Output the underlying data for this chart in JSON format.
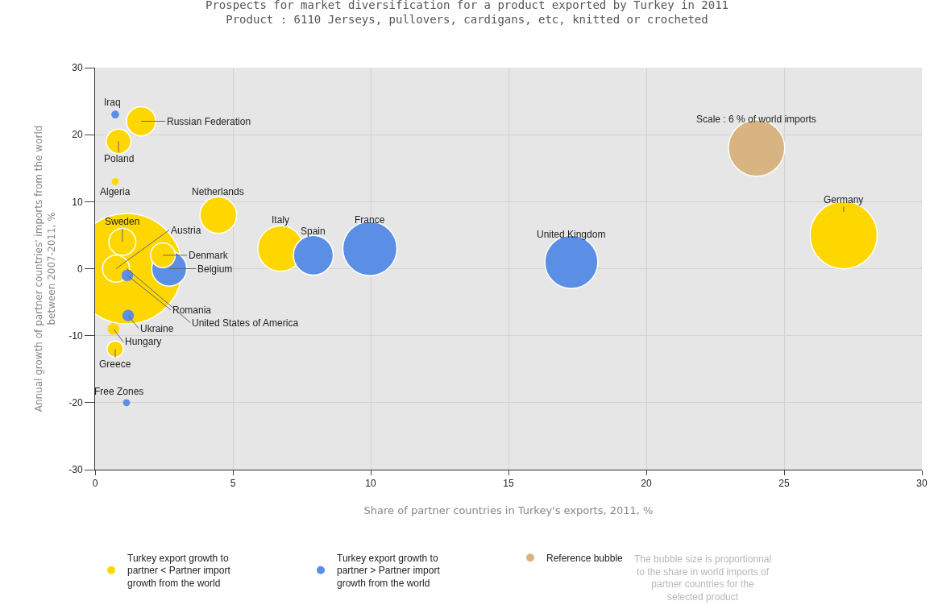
{
  "chart_data": {
    "type": "bubble",
    "title": "Prospects for market diversification for a product exported by Turkey in 2011",
    "subtitle": "Product : 6110 Jerseys, pullovers, cardigans, etc, knitted or crocheted",
    "xlabel": "Share of partner countries in Turkey's exports, 2011, %",
    "ylabel": "Annual growth of partner countries' imports from the world between 2007-2011, %",
    "series": [
      {
        "name": "Turkey export growth to partner < Partner import growth from the world",
        "color": "#ffd700",
        "x": [
          0.85,
          1.67,
          0.73,
          4.47,
          0.99,
          0.76,
          2.46,
          6.73,
          27.16,
          1.15,
          0.67,
          0.73
        ],
        "values": [
          19,
          22,
          13,
          8,
          4,
          0,
          2,
          3,
          5,
          0,
          -9,
          -12
        ],
        "sizes": [
          0.05,
          0.07,
          0.004,
          0.11,
          0.06,
          0.06,
          0.05,
          0.17,
          0.37,
          1,
          0.011,
          0.022
        ]
      },
      {
        "name": "Turkey export growth to partner > Partner import growth from the world",
        "color": "#5b8fe6",
        "x": [
          0.73,
          2.69,
          7.92,
          9.97,
          17.28,
          1.17,
          1.2,
          1.14
        ],
        "values": [
          23,
          0,
          2,
          3,
          1,
          -1,
          -7,
          -20
        ],
        "sizes": [
          0.005,
          0.1,
          0.13,
          0.24,
          0.23,
          0.011,
          0.011,
          0.004
        ]
      },
      {
        "name": "Reference bubble",
        "color": "#d9b483",
        "x": [
          24.0
        ],
        "values": [
          18
        ],
        "sizes": [
          0.26
        ]
      }
    ],
    "xlim": [
      0,
      30
    ],
    "xticks": [
      0,
      5,
      10,
      15,
      20,
      25,
      30
    ],
    "ylim": [
      -30,
      30
    ],
    "yticks": [
      -30,
      -20,
      -10,
      0,
      10,
      20,
      30
    ],
    "grid": true,
    "legend": "bottom",
    "annotations": [
      {
        "text": "Iraq",
        "x": 0.73,
        "y": 23
      },
      {
        "text": "Russian Federation",
        "x": 1.67,
        "y": 22
      },
      {
        "text": "Poland",
        "x": 0.85,
        "y": 19
      },
      {
        "text": "Algeria",
        "x": 0.73,
        "y": 13
      },
      {
        "text": "Netherlands",
        "x": 4.47,
        "y": 8
      },
      {
        "text": "Sweden",
        "x": 0.99,
        "y": 4
      },
      {
        "text": "Austria",
        "x": 0.76,
        "y": 0
      },
      {
        "text": "Denmark",
        "x": 2.46,
        "y": 2
      },
      {
        "text": "Belgium",
        "x": 2.69,
        "y": 0
      },
      {
        "text": "Italy",
        "x": 6.73,
        "y": 3
      },
      {
        "text": "Spain",
        "x": 7.92,
        "y": 2
      },
      {
        "text": "France",
        "x": 9.97,
        "y": 3
      },
      {
        "text": "United Kingdom",
        "x": 17.28,
        "y": 1
      },
      {
        "text": "Germany",
        "x": 27.16,
        "y": 5
      },
      {
        "text": "Romania",
        "x": 1.17,
        "y": -1
      },
      {
        "text": "United States of America",
        "x": 1.15,
        "y": 0
      },
      {
        "text": "Ukraine",
        "x": 1.2,
        "y": -7
      },
      {
        "text": "Hungary",
        "x": 0.67,
        "y": -9
      },
      {
        "text": "Greece",
        "x": 0.73,
        "y": -12
      },
      {
        "text": "Free Zones",
        "x": 1.14,
        "y": -20
      },
      {
        "text": "Scale : 6 % of world imports",
        "x": 24.0,
        "y": 18
      },
      "The bubble size is proportionnal to the share in world imports of partner countries for the selected product"
    ]
  }
}
